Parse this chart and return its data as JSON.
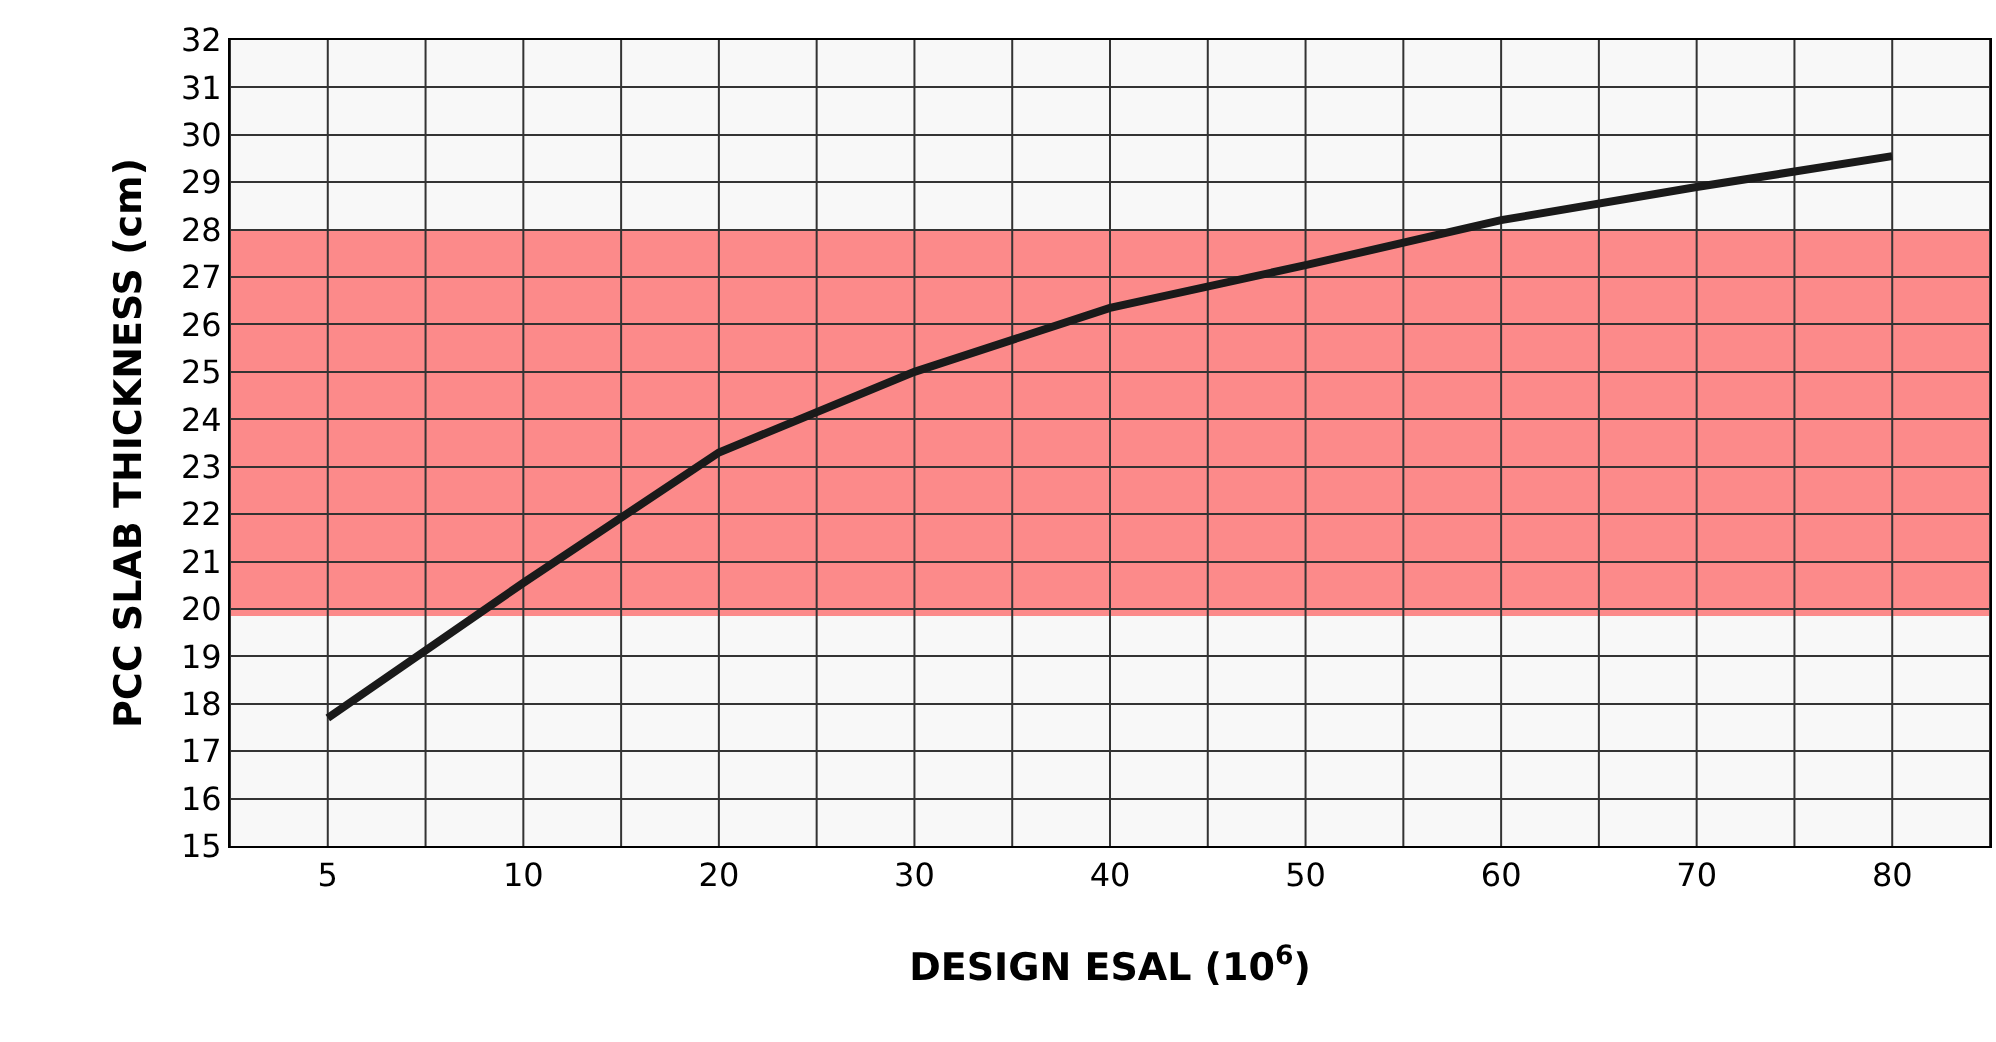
{
  "chart_data": {
    "type": "line",
    "xlabel": "DESIGN ESAL (10$^{6}$)",
    "ylabel": "PCC SLAB THICKNESS (cm)",
    "categories": [
      "5",
      "10",
      "20",
      "30",
      "40",
      "50",
      "60",
      "70",
      "80"
    ],
    "series": [
      {
        "color": "#1a1a1a",
        "values": [
          17.7,
          20.55,
          23.3,
          25.0,
          26.35,
          27.25,
          28.2,
          28.9,
          29.55
        ]
      }
    ],
    "ylim": [
      15,
      32
    ],
    "yticks": [
      15,
      16,
      17,
      18,
      19,
      20,
      21,
      22,
      23,
      24,
      25,
      26,
      27,
      28,
      29,
      30,
      31,
      32
    ],
    "bands": [
      {
        "axis": "y",
        "from": 19.85,
        "to": 28,
        "color": "#ff3030"
      }
    ],
    "grid": true,
    "marker": "none",
    "line_style": "solid"
  }
}
